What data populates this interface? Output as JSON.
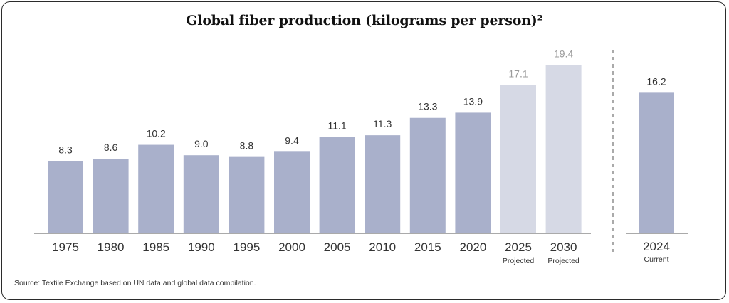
{
  "title": "Global fiber production (kilograms per person)²",
  "source": "Source: Textile Exchange based on UN data and global data compilation.",
  "colors": {
    "bar": "#a9b0cb",
    "projected_bar": "#d6d9e5",
    "value_label": "#333333",
    "projected_label": "#9b9b9b",
    "axis": "#555555"
  },
  "chart_data": {
    "type": "bar",
    "ylim": [
      0,
      20
    ],
    "grid": false,
    "main": {
      "categories": [
        "1975",
        "1980",
        "1985",
        "1990",
        "1995",
        "2000",
        "2005",
        "2010",
        "2015",
        "2020",
        "2025",
        "2030"
      ],
      "values": [
        8.3,
        8.6,
        10.2,
        9.0,
        8.8,
        9.4,
        11.1,
        11.3,
        13.3,
        13.9,
        17.1,
        19.4
      ],
      "value_labels": [
        "8.3",
        "8.6",
        "10.2",
        "9.0",
        "8.8",
        "9.4",
        "11.1",
        "11.3",
        "13.3",
        "13.9",
        "17.1",
        "19.4"
      ],
      "sublabels": [
        "",
        "",
        "",
        "",
        "",
        "",
        "",
        "",
        "",
        "",
        "Projected",
        "Projected"
      ],
      "projected": [
        false,
        false,
        false,
        false,
        false,
        false,
        false,
        false,
        false,
        false,
        true,
        true
      ]
    },
    "current": {
      "category": "2024",
      "value": 16.2,
      "value_label": "16.2",
      "sublabel": "Current"
    }
  }
}
